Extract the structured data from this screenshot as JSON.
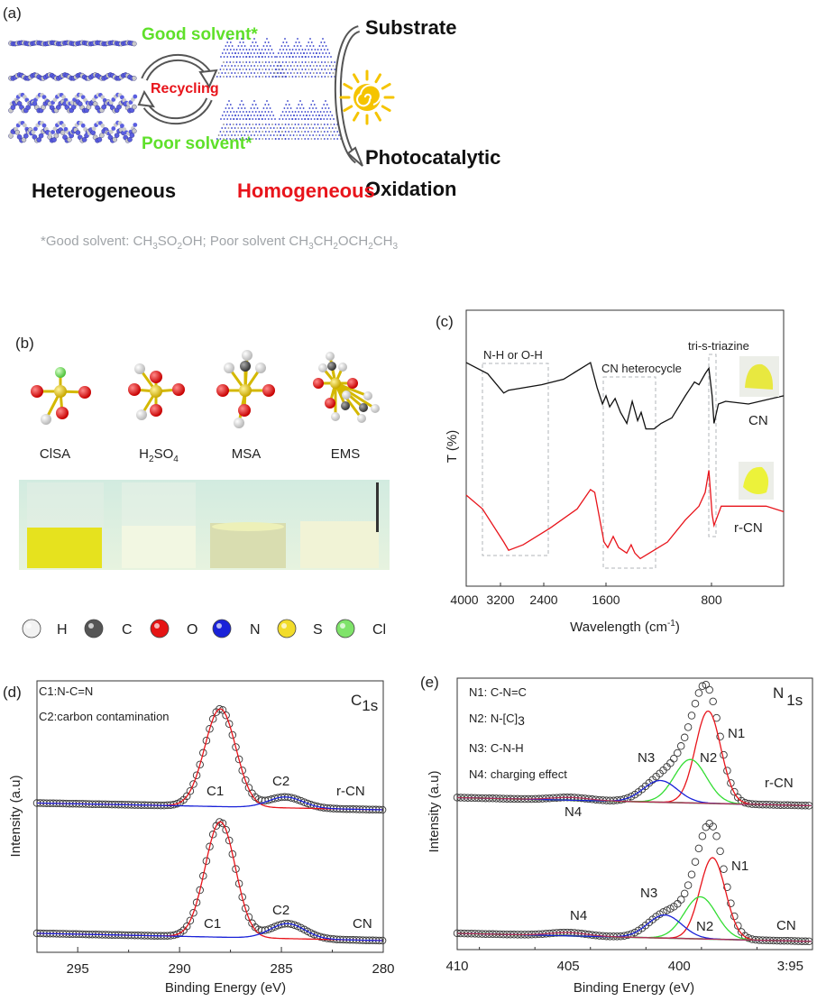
{
  "panel_labels": {
    "a": "(a)",
    "b": "(b)",
    "c": "(c)",
    "d": "(d)",
    "e": "(e)"
  },
  "panel_a": {
    "good_solvent": "Good solvent*",
    "recycling": "Recycling",
    "poor_solvent": "Poor solvent*",
    "heterogeneous": "Heterogeneous",
    "homogeneous": "Homogeneous",
    "substrate": "Substrate",
    "photocatalytic": "Photocatalytic",
    "oxidation": "Oxidation",
    "footnote_parts": [
      "*Good solvent:  CH",
      "3",
      "SO",
      "2",
      "OH; Poor solvent CH",
      "3",
      "CH",
      "2",
      "OCH",
      "2",
      "CH",
      "3"
    ],
    "colors": {
      "good": "#5fe02a",
      "poor": "#5fe02a",
      "recycling": "#e8141b",
      "homogeneous": "#e8141b",
      "footnote": "#a0a4a8",
      "sun": "#f5c400",
      "layers": "#5a5ee0"
    }
  },
  "panel_b": {
    "molecules": [
      {
        "parts": [
          "ClSA"
        ]
      },
      {
        "parts": [
          "H",
          "2",
          "SO",
          "4"
        ]
      },
      {
        "parts": [
          "MSA"
        ]
      },
      {
        "parts": [
          "EMS"
        ]
      }
    ],
    "element_legend": [
      {
        "symbol": "H",
        "color": "#f2f2f2"
      },
      {
        "symbol": "C",
        "color": "#555555"
      },
      {
        "symbol": "O",
        "color": "#e51515"
      },
      {
        "symbol": "N",
        "color": "#1a22d8"
      },
      {
        "symbol": "S",
        "color": "#f2dc2a"
      },
      {
        "symbol": "Cl",
        "color": "#7fe36a"
      }
    ]
  },
  "chart_data": [
    {
      "type": "line",
      "panel": "c",
      "xlabel_parts": [
        "Wavelength (cm",
        "-1",
        ")"
      ],
      "ylabel": "T (%)",
      "x_ticks": [
        4000,
        3200,
        2400,
        1600,
        800
      ],
      "xlim": [
        4000,
        250
      ],
      "grid": false,
      "annotations": [
        "N-H or O-H",
        "CN heterocycle",
        "tri-s-triazine"
      ],
      "series": [
        {
          "name": "CN",
          "color": "#111111",
          "x": [
            4000,
            3500,
            3140,
            3050,
            2440,
            2145,
            1800,
            1715,
            1645,
            1600,
            1572,
            1531,
            1490,
            1442,
            1401,
            1360,
            1333,
            1298,
            1236,
            1182,
            1100,
            998,
            929,
            895,
            848,
            820,
            795,
            781,
            747,
            692,
            518,
            250
          ],
          "y": [
            81,
            77,
            70,
            71,
            73,
            75,
            81,
            72,
            66,
            69,
            65,
            68,
            63,
            59,
            67,
            60,
            63,
            57,
            57,
            59,
            61,
            69,
            74,
            73,
            77,
            79,
            69,
            59,
            66,
            67,
            66,
            69
          ]
        },
        {
          "name": "r-CN",
          "color": "#e8141b",
          "x": [
            4000,
            3620,
            3140,
            3050,
            2780,
            2320,
            1970,
            1800,
            1745,
            1625,
            1586,
            1545,
            1504,
            1443,
            1409,
            1381,
            1340,
            1236,
            1134,
            998,
            895,
            848,
            820,
            795,
            781,
            726,
            658,
            383,
            250
          ],
          "y": [
            33,
            28,
            16,
            13,
            15,
            21,
            28,
            35,
            34,
            16,
            14,
            18,
            14,
            12,
            15,
            12,
            10,
            13,
            16,
            24,
            29,
            34,
            42,
            26,
            22,
            29,
            29,
            29,
            27
          ]
        }
      ]
    },
    {
      "type": "line",
      "panel": "d",
      "title_parts": [
        "C",
        "1s"
      ],
      "xlabel": "Binding Energy (eV)",
      "ylabel": "Intensity (a.u)",
      "x_ticks": [
        295,
        290,
        285,
        280
      ],
      "xlim": [
        297,
        280
      ],
      "ylim": [
        0,
        10
      ],
      "legend_text": [
        "C1:N-C=N",
        "C2:carbon contamination"
      ],
      "series": [
        {
          "name": "r-CN",
          "baseline": [
            5.5,
            5.25
          ],
          "peaks": [
            {
              "label": "C1",
              "center": 288.0,
              "fwhm": 1.8,
              "height": 3.6,
              "color": "#e8141b"
            },
            {
              "label": "C2",
              "center": 284.8,
              "fwhm": 2.0,
              "height": 0.4,
              "color": "#1a22d8"
            }
          ]
        },
        {
          "name": "CN",
          "baseline": [
            0.7,
            0.43
          ],
          "peaks": [
            {
              "label": "C1",
              "center": 288.0,
              "fwhm": 1.75,
              "height": 4.25,
              "color": "#e8141b"
            },
            {
              "label": "C2",
              "center": 284.7,
              "fwhm": 2.0,
              "height": 0.55,
              "color": "#1a22d8"
            }
          ]
        }
      ]
    },
    {
      "type": "line",
      "panel": "e",
      "title_parts": [
        "N",
        "1s"
      ],
      "xlabel": "Binding Energy (eV)",
      "ylabel": "Intensity (a.u)",
      "x_ticks": [
        410,
        405,
        400,
        395
      ],
      "x_tick_labels": [
        "410",
        "405",
        "400",
        "3:95"
      ],
      "xlim": [
        410,
        394
      ],
      "ylim": [
        0,
        10
      ],
      "legend_text": [
        {
          "parts": [
            "N1: C-N=C"
          ]
        },
        {
          "parts": [
            "N2: N-[C]",
            "3"
          ]
        },
        {
          "parts": [
            "N3: C-N-H"
          ]
        },
        {
          "parts": [
            "N4: charging effect"
          ]
        }
      ],
      "series": [
        {
          "name": "r-CN",
          "baseline": [
            5.6,
            5.3
          ],
          "peaks": [
            {
              "label": "N1",
              "center": 398.7,
              "fwhm": 1.35,
              "height": 3.4,
              "color": "#e8141b"
            },
            {
              "label": "N2",
              "center": 399.5,
              "fwhm": 1.7,
              "height": 1.6,
              "color": "#33dd33"
            },
            {
              "label": "N3",
              "center": 400.85,
              "fwhm": 1.8,
              "height": 0.8,
              "color": "#1a22d8"
            },
            {
              "label": "N4",
              "center": 404.9,
              "fwhm": 2.0,
              "height": 0.1,
              "color": "#b0305a"
            }
          ]
        },
        {
          "name": "CN",
          "baseline": [
            0.6,
            0.3
          ],
          "peaks": [
            {
              "label": "N1",
              "center": 398.5,
              "fwhm": 1.35,
              "height": 3.0,
              "color": "#e8141b"
            },
            {
              "label": "N2",
              "center": 399.05,
              "fwhm": 1.7,
              "height": 1.55,
              "color": "#33dd33"
            },
            {
              "label": "N3",
              "center": 400.65,
              "fwhm": 1.8,
              "height": 0.85,
              "color": "#1a22d8"
            },
            {
              "label": "N4",
              "center": 405.0,
              "fwhm": 2.0,
              "height": 0.12,
              "color": "#b0305a"
            }
          ]
        }
      ]
    }
  ]
}
